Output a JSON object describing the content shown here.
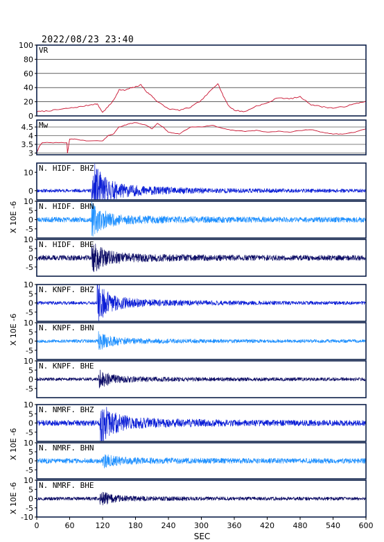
{
  "datetime": "2022/08/23 23:40",
  "colors": {
    "frame": "#0b1e48",
    "vr_mw": "#c8102e",
    "bhz": "#0b1ed6",
    "bhn": "#1e90ff",
    "bhe": "#0a0a64"
  },
  "chart_data": [
    {
      "type": "line",
      "label": "VR",
      "ylim": [
        0,
        100
      ],
      "yticks": [
        0,
        20,
        40,
        60,
        80,
        100
      ],
      "grid": true,
      "x": [
        0,
        20,
        40,
        60,
        80,
        100,
        110,
        120,
        130,
        140,
        150,
        160,
        170,
        180,
        190,
        200,
        210,
        220,
        240,
        260,
        280,
        300,
        320,
        330,
        340,
        350,
        360,
        380,
        400,
        420,
        440,
        460,
        480,
        500,
        520,
        540,
        560,
        580,
        600
      ],
      "y": [
        6,
        7,
        9,
        11,
        13,
        16,
        17,
        5,
        13,
        22,
        37,
        36,
        39,
        41,
        44,
        34,
        28,
        20,
        10,
        8,
        12,
        22,
        38,
        46,
        28,
        14,
        8,
        6,
        14,
        18,
        26,
        24,
        27,
        16,
        13,
        11,
        13,
        17,
        21
      ]
    },
    {
      "type": "line",
      "label": "Mw",
      "ylim": [
        2.9,
        4.9
      ],
      "yticks": [
        3.0,
        3.5,
        4.0,
        4.5
      ],
      "grid": true,
      "x": [
        0,
        5,
        10,
        25,
        55,
        56,
        60,
        70,
        90,
        120,
        130,
        140,
        150,
        160,
        170,
        180,
        200,
        210,
        220,
        230,
        240,
        260,
        280,
        300,
        320,
        340,
        360,
        380,
        400,
        420,
        440,
        460,
        480,
        500,
        520,
        540,
        560,
        580,
        600
      ],
      "y": [
        3.0,
        3.4,
        3.6,
        3.6,
        3.6,
        3.0,
        3.8,
        3.8,
        3.7,
        3.7,
        4.0,
        4.1,
        4.5,
        4.6,
        4.7,
        4.75,
        4.6,
        4.4,
        4.7,
        4.5,
        4.2,
        4.1,
        4.5,
        4.5,
        4.6,
        4.4,
        4.3,
        4.25,
        4.3,
        4.2,
        4.25,
        4.2,
        4.3,
        4.35,
        4.2,
        4.1,
        4.1,
        4.2,
        4.4
      ]
    },
    {
      "type": "line",
      "label": "N. HIDF. BHZ",
      "color_key": "bhz",
      "ylim": [
        -5,
        15
      ],
      "yticks": [
        0,
        10
      ],
      "onset": 100,
      "peak": 14,
      "coda": 0.9,
      "seed": 11
    },
    {
      "type": "line",
      "label": "N. HIDF. BHN",
      "color_key": "bhn",
      "ylim": [
        -10,
        10
      ],
      "yticks": [
        -5,
        0,
        5,
        10
      ],
      "onset": 100,
      "peak": 7,
      "coda": 1.4,
      "seed": 23
    },
    {
      "type": "line",
      "label": "N. HIDF. BHE",
      "color_key": "bhe",
      "ylim": [
        -10,
        10
      ],
      "yticks": [
        -5,
        0,
        5,
        10
      ],
      "onset": 100,
      "peak": 7,
      "coda": 1.4,
      "seed": 37
    },
    {
      "type": "line",
      "label": "N. KNPF. BHZ",
      "color_key": "bhz",
      "ylim": [
        -10,
        10
      ],
      "yticks": [
        -5,
        0,
        5,
        10
      ],
      "onset": 110,
      "peak": 9,
      "coda": 0.9,
      "seed": 41
    },
    {
      "type": "line",
      "label": "N. KNPF. BHN",
      "color_key": "bhn",
      "ylim": [
        -10,
        10
      ],
      "yticks": [
        -5,
        0,
        5,
        10
      ],
      "onset": 112,
      "peak": 4,
      "coda": 0.9,
      "seed": 53
    },
    {
      "type": "line",
      "label": "N. KNPF. BHE",
      "color_key": "bhe",
      "ylim": [
        -10,
        10
      ],
      "yticks": [
        -5,
        0,
        5,
        10
      ],
      "onset": 112,
      "peak": 4,
      "coda": 0.9,
      "seed": 61
    },
    {
      "type": "line",
      "label": "N. NMRF. BHZ",
      "color_key": "bhz",
      "ylim": [
        -10,
        10
      ],
      "yticks": [
        -5,
        0,
        5,
        10
      ],
      "onset": 115,
      "peak": 10,
      "coda": 1.5,
      "seed": 71
    },
    {
      "type": "line",
      "label": "N. NMRF. BHN",
      "color_key": "bhn",
      "ylim": [
        -10,
        10
      ],
      "yticks": [
        -5,
        0,
        5,
        10
      ],
      "onset": 120,
      "peak": 2.5,
      "coda": 1.4,
      "seed": 83
    },
    {
      "type": "line",
      "label": "N. NMRF. BHE",
      "color_key": "bhe",
      "ylim": [
        -10,
        10
      ],
      "yticks": [
        -10,
        -5,
        0,
        5,
        10
      ],
      "onset": 115,
      "peak": 3,
      "coda": 0.9,
      "seed": 97
    }
  ],
  "x_axis": {
    "label": "SEC",
    "ticks": [
      0,
      60,
      120,
      180,
      240,
      300,
      360,
      420,
      480,
      540,
      600
    ],
    "xlim": [
      0,
      600
    ]
  },
  "unit_labels": [
    "X 10E -6",
    "X 10E -6",
    "X 10E -6",
    "X 10E -6"
  ]
}
